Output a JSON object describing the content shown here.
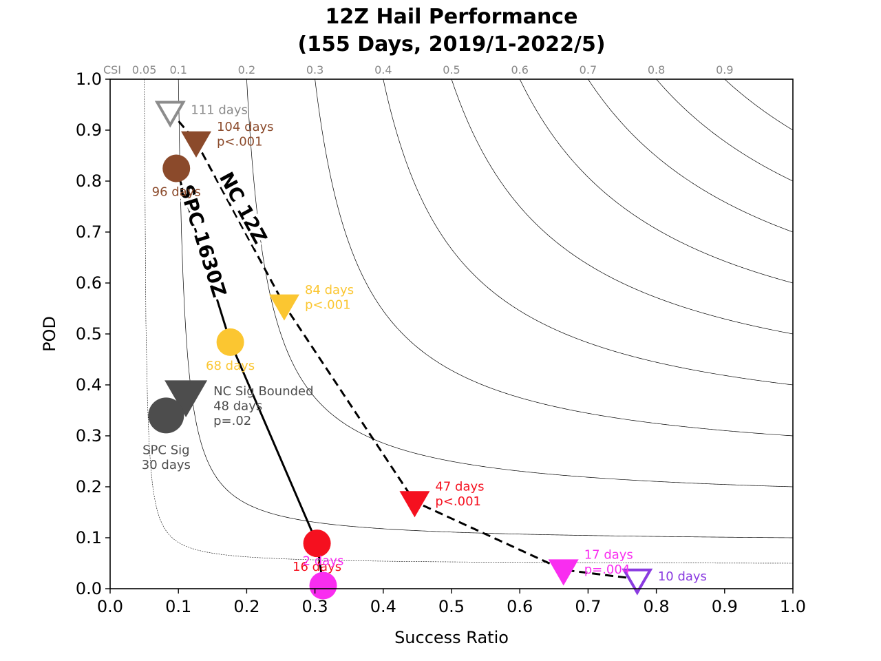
{
  "chart_data": {
    "type": "scatter",
    "title": "12Z Hail Performance",
    "subtitle": "(155 Days, 2019/1-2022/5)",
    "xlabel": "Success Ratio",
    "ylabel": "POD",
    "xlim": [
      0,
      1
    ],
    "ylim": [
      0,
      1
    ],
    "x_ticks": [
      0.0,
      0.1,
      0.2,
      0.3,
      0.4,
      0.5,
      0.6,
      0.7,
      0.8,
      0.9,
      1.0
    ],
    "y_ticks": [
      0.0,
      0.1,
      0.2,
      0.3,
      0.4,
      0.5,
      0.6,
      0.7,
      0.8,
      0.9,
      1.0
    ],
    "csi_label": "CSI",
    "csi_contours": [
      0.05,
      0.1,
      0.2,
      0.3,
      0.4,
      0.5,
      0.6,
      0.7,
      0.8,
      0.9
    ],
    "grid": false,
    "series": [
      {
        "name": "NC 12Z",
        "line_style": "dashed",
        "marker": "triangle-down",
        "points": [
          {
            "x": 0.088,
            "y": 0.937,
            "label": "111 days",
            "color": "#8c8c8c",
            "hollow": true
          },
          {
            "x": 0.126,
            "y": 0.877,
            "label": "104 days\np<.001",
            "color": "#8b4a2b",
            "hollow": false
          },
          {
            "x": 0.255,
            "y": 0.557,
            "label": "84 days\np<.001",
            "color": "#fbc631",
            "hollow": false
          },
          {
            "x": 0.446,
            "y": 0.171,
            "label": "47 days\np<.001",
            "color": "#f5101f",
            "hollow": false
          },
          {
            "x": 0.664,
            "y": 0.037,
            "label": "17 days\np=.004",
            "color": "#f92df0",
            "hollow": false
          },
          {
            "x": 0.772,
            "y": 0.019,
            "label": "10 days",
            "color": "#8a3be0",
            "hollow": true
          }
        ]
      },
      {
        "name": "SPC 1630Z",
        "line_style": "solid",
        "marker": "circle",
        "points": [
          {
            "x": 0.097,
            "y": 0.825,
            "label": "96 days",
            "color": "#8b4a2b"
          },
          {
            "x": 0.176,
            "y": 0.484,
            "label": "68 days",
            "color": "#fbc631"
          },
          {
            "x": 0.303,
            "y": 0.089,
            "label": "16 days",
            "color": "#f5101f"
          },
          {
            "x": 0.312,
            "y": 0.006,
            "label": "2 days",
            "color": "#f92df0"
          }
        ]
      }
    ],
    "extra_points": [
      {
        "name": "NC Sig Bounded",
        "marker": "triangle-down",
        "x": 0.111,
        "y": 0.38,
        "label": "NC Sig Bounded\n48 days\np=.02",
        "color": "#4d4d4d"
      },
      {
        "name": "SPC Sig",
        "marker": "circle",
        "x": 0.082,
        "y": 0.34,
        "label": "SPC Sig\n30 days",
        "color": "#4d4d4d"
      }
    ]
  }
}
